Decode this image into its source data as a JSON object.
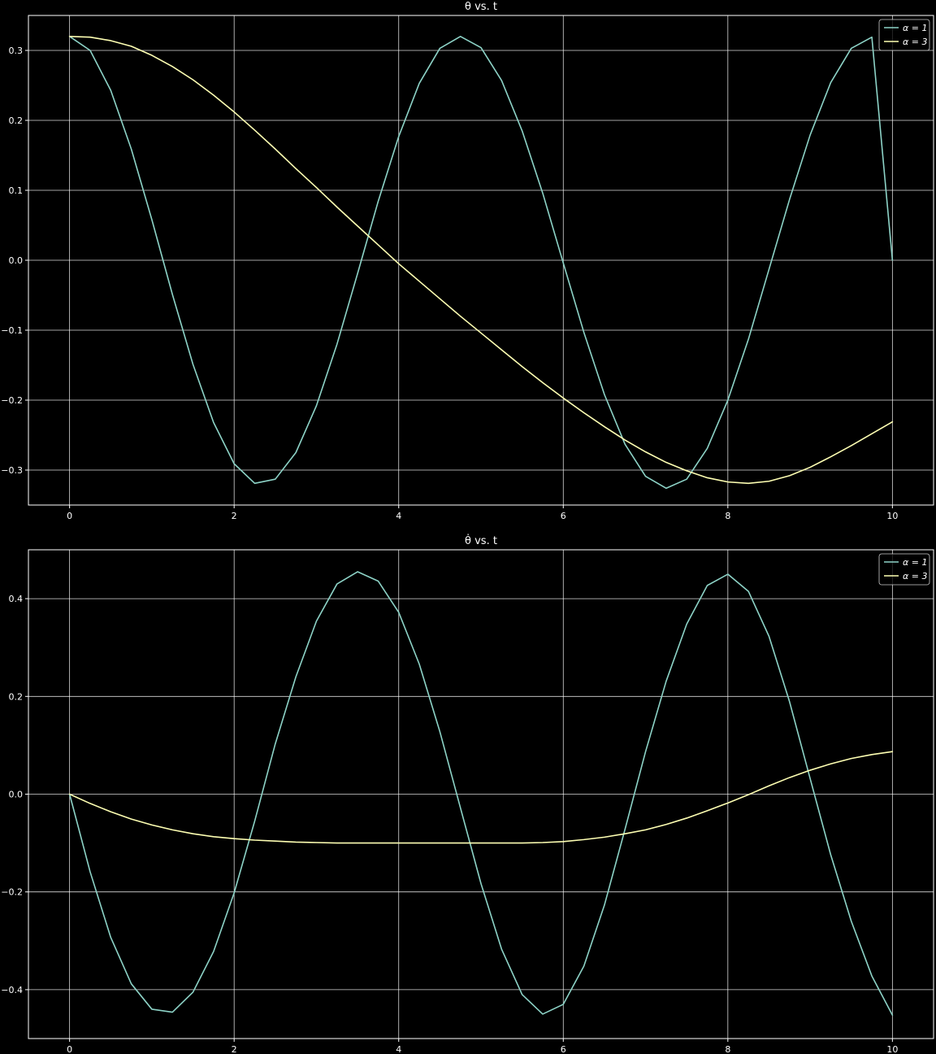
{
  "theme": {
    "background": "#000000",
    "foreground": "#ffffff",
    "grid": "#ffffff",
    "series_colors": [
      "#8dd3c7",
      "#feffb3"
    ]
  },
  "chart_data": [
    {
      "type": "line",
      "title": "θ vs. t",
      "xlabel": "",
      "ylabel": "",
      "xlim": [
        -0.5,
        10.5
      ],
      "ylim": [
        -0.35,
        0.35
      ],
      "xticks": [
        0,
        2,
        4,
        6,
        8,
        10
      ],
      "xtick_labels": [
        "0",
        "2",
        "4",
        "6",
        "8",
        "10"
      ],
      "yticks": [
        -0.3,
        -0.2,
        -0.1,
        0.0,
        0.1,
        0.2,
        0.3
      ],
      "ytick_labels": [
        "−0.3",
        "−0.2",
        "−0.1",
        "0.0",
        "0.1",
        "0.2",
        "0.3"
      ],
      "grid": true,
      "legend_placement": "top-right",
      "series": [
        {
          "name": "α = 1",
          "color": "#8dd3c7",
          "x": [
            0,
            0.25,
            0.5,
            0.75,
            1,
            1.25,
            1.5,
            1.75,
            2,
            2.25,
            2.5,
            2.75,
            3,
            3.25,
            3.5,
            3.75,
            4,
            4.25,
            4.5,
            4.75,
            5,
            5.25,
            5.5,
            5.75,
            6,
            6.25,
            6.5,
            6.75,
            7,
            7.25,
            7.5,
            7.75,
            8,
            8.25,
            8.5,
            8.75,
            9,
            9.25,
            9.5,
            9.75,
            10
          ],
          "y": [
            0.32,
            0.3,
            0.243,
            0.159,
            0.058,
            -0.049,
            -0.149,
            -0.232,
            -0.291,
            -0.319,
            -0.313,
            -0.275,
            -0.208,
            -0.12,
            -0.019,
            0.084,
            0.177,
            0.253,
            0.303,
            0.32,
            0.304,
            0.257,
            0.185,
            0.096,
            -0.004,
            -0.103,
            -0.192,
            -0.263,
            -0.309,
            -0.326,
            -0.313,
            -0.269,
            -0.2,
            -0.113,
            -0.013,
            0.087,
            0.179,
            0.254,
            0.303,
            0.319,
            0.0
          ]
        },
        {
          "name": "α = 3",
          "color": "#feffb3",
          "x": [
            0,
            0.25,
            0.5,
            0.75,
            1,
            1.25,
            1.5,
            1.75,
            2,
            2.25,
            2.5,
            2.75,
            3,
            3.25,
            3.5,
            3.75,
            4,
            4.25,
            4.5,
            4.75,
            5,
            5.25,
            5.5,
            5.75,
            6,
            6.25,
            6.5,
            6.75,
            7,
            7.25,
            7.5,
            7.75,
            8,
            8.25,
            8.5,
            8.75,
            9,
            9.25,
            9.5,
            9.75,
            10
          ],
          "y": [
            0.32,
            0.319,
            0.314,
            0.306,
            0.293,
            0.277,
            0.258,
            0.236,
            0.212,
            0.186,
            0.159,
            0.131,
            0.104,
            0.076,
            0.049,
            0.022,
            -0.005,
            -0.03,
            -0.055,
            -0.08,
            -0.104,
            -0.128,
            -0.152,
            -0.175,
            -0.197,
            -0.218,
            -0.238,
            -0.257,
            -0.274,
            -0.289,
            -0.301,
            -0.311,
            -0.317,
            -0.319,
            -0.316,
            -0.308,
            -0.296,
            -0.281,
            -0.265,
            -0.248,
            -0.231
          ]
        }
      ]
    },
    {
      "type": "line",
      "title": "θ̇ vs. t",
      "xlabel": "",
      "ylabel": "",
      "xlim": [
        -0.5,
        10.5
      ],
      "ylim": [
        -0.5,
        0.5
      ],
      "xticks": [
        0,
        2,
        4,
        6,
        8,
        10
      ],
      "xtick_labels": [
        "0",
        "2",
        "4",
        "6",
        "8",
        "10"
      ],
      "yticks": [
        -0.4,
        -0.2,
        0.0,
        0.2,
        0.4
      ],
      "ytick_labels": [
        "−0.4",
        "−0.2",
        "0.0",
        "0.2",
        "0.4"
      ],
      "grid": true,
      "legend_placement": "top-right",
      "series": [
        {
          "name": "α = 1",
          "color": "#8dd3c7",
          "x": [
            0,
            0.25,
            0.5,
            0.75,
            1,
            1.25,
            1.5,
            1.75,
            2,
            2.25,
            2.5,
            2.75,
            3,
            3.25,
            3.5,
            3.75,
            4,
            4.25,
            4.5,
            4.75,
            5,
            5.25,
            5.5,
            5.75,
            6,
            6.25,
            6.5,
            6.75,
            7,
            7.25,
            7.5,
            7.75,
            8,
            8.25,
            8.5,
            8.75,
            9,
            9.25,
            9.5,
            9.75,
            10
          ],
          "y": [
            0.0,
            -0.159,
            -0.293,
            -0.388,
            -0.44,
            -0.446,
            -0.405,
            -0.322,
            -0.202,
            -0.055,
            0.103,
            0.24,
            0.354,
            0.43,
            0.455,
            0.436,
            0.372,
            0.266,
            0.128,
            -0.028,
            -0.183,
            -0.317,
            -0.41,
            -0.45,
            -0.43,
            -0.352,
            -0.227,
            -0.072,
            0.087,
            0.231,
            0.348,
            0.427,
            0.45,
            0.415,
            0.323,
            0.189,
            0.032,
            -0.124,
            -0.26,
            -0.372,
            -0.452
          ]
        },
        {
          "name": "α = 3",
          "color": "#feffb3",
          "x": [
            0,
            0.25,
            0.5,
            0.75,
            1,
            1.25,
            1.5,
            1.75,
            2,
            2.25,
            2.5,
            2.75,
            3,
            3.25,
            3.5,
            3.75,
            4,
            4.25,
            4.5,
            4.75,
            5,
            5.25,
            5.5,
            5.75,
            6,
            6.25,
            6.5,
            6.75,
            7,
            7.25,
            7.5,
            7.75,
            8,
            8.25,
            8.5,
            8.75,
            9,
            9.25,
            9.5,
            9.75,
            10
          ],
          "y": [
            0.0,
            -0.019,
            -0.036,
            -0.051,
            -0.063,
            -0.073,
            -0.081,
            -0.087,
            -0.091,
            -0.094,
            -0.096,
            -0.098,
            -0.099,
            -0.1,
            -0.1,
            -0.1,
            -0.1,
            -0.1,
            -0.1,
            -0.1,
            -0.1,
            -0.1,
            -0.1,
            -0.099,
            -0.097,
            -0.093,
            -0.088,
            -0.081,
            -0.073,
            -0.062,
            -0.049,
            -0.034,
            -0.018,
            -0.001,
            0.017,
            0.034,
            0.049,
            0.062,
            0.073,
            0.081,
            0.087
          ]
        }
      ]
    }
  ]
}
